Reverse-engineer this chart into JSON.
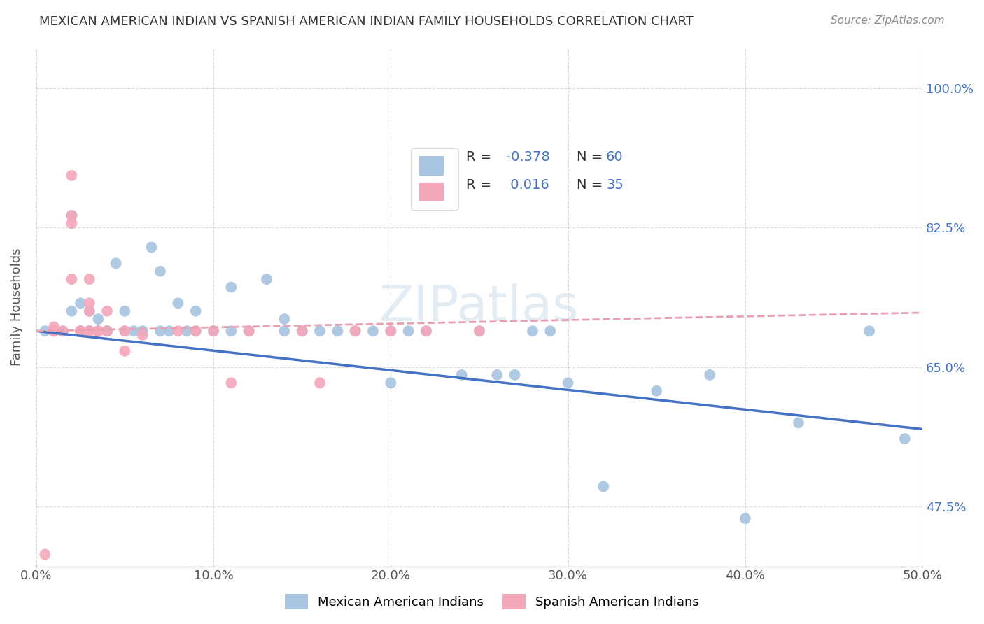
{
  "title": "MEXICAN AMERICAN INDIAN VS SPANISH AMERICAN INDIAN FAMILY HOUSEHOLDS CORRELATION CHART",
  "source": "Source: ZipAtlas.com",
  "xlabel_ticks": [
    "0.0%",
    "10.0%",
    "20.0%",
    "30.0%",
    "40.0%",
    "50.0%"
  ],
  "ylabel_ticks": [
    "47.5%",
    "65.0%",
    "82.5%",
    "100.0%"
  ],
  "ylabel_label": "Family Households",
  "legend_labels": [
    "Mexican American Indians",
    "Spanish American Indians"
  ],
  "blue_color": "#a8c4e0",
  "pink_color": "#f4a7b9",
  "blue_line_color": "#4472c4",
  "pink_line_color": "#e8a0b0",
  "r_blue": "-0.378",
  "n_blue": "60",
  "r_pink": "0.016",
  "n_pink": "35",
  "watermark": "ZIPatlas",
  "background_color": "#ffffff",
  "xmin": 0.0,
  "xmax": 0.5,
  "ymin": 0.4,
  "ymax": 1.05,
  "ytick_vals": [
    0.475,
    0.65,
    0.825,
    1.0
  ],
  "xtick_vals": [
    0.0,
    0.1,
    0.2,
    0.3,
    0.4,
    0.5
  ],
  "blue_scatter_x": [
    0.005,
    0.01,
    0.015,
    0.02,
    0.02,
    0.025,
    0.025,
    0.03,
    0.03,
    0.03,
    0.03,
    0.035,
    0.035,
    0.04,
    0.04,
    0.04,
    0.045,
    0.05,
    0.05,
    0.055,
    0.06,
    0.065,
    0.07,
    0.07,
    0.075,
    0.08,
    0.085,
    0.09,
    0.09,
    0.1,
    0.1,
    0.11,
    0.11,
    0.12,
    0.13,
    0.14,
    0.14,
    0.15,
    0.16,
    0.17,
    0.18,
    0.19,
    0.2,
    0.2,
    0.21,
    0.22,
    0.24,
    0.25,
    0.26,
    0.27,
    0.28,
    0.29,
    0.3,
    0.32,
    0.35,
    0.38,
    0.4,
    0.43,
    0.47,
    0.49
  ],
  "blue_scatter_y": [
    0.695,
    0.695,
    0.695,
    0.84,
    0.72,
    0.73,
    0.695,
    0.695,
    0.72,
    0.695,
    0.695,
    0.71,
    0.695,
    0.695,
    0.695,
    0.695,
    0.78,
    0.72,
    0.695,
    0.695,
    0.695,
    0.8,
    0.77,
    0.695,
    0.695,
    0.73,
    0.695,
    0.72,
    0.695,
    0.695,
    0.695,
    0.75,
    0.695,
    0.695,
    0.76,
    0.71,
    0.695,
    0.695,
    0.695,
    0.695,
    0.695,
    0.695,
    0.695,
    0.63,
    0.695,
    0.695,
    0.64,
    0.695,
    0.64,
    0.64,
    0.695,
    0.695,
    0.63,
    0.5,
    0.62,
    0.64,
    0.46,
    0.58,
    0.695,
    0.56
  ],
  "pink_scatter_x": [
    0.005,
    0.01,
    0.01,
    0.01,
    0.015,
    0.02,
    0.02,
    0.02,
    0.02,
    0.025,
    0.025,
    0.025,
    0.03,
    0.03,
    0.03,
    0.03,
    0.03,
    0.035,
    0.035,
    0.04,
    0.04,
    0.05,
    0.05,
    0.06,
    0.08,
    0.09,
    0.1,
    0.11,
    0.12,
    0.15,
    0.16,
    0.18,
    0.2,
    0.22,
    0.25
  ],
  "pink_scatter_y": [
    0.415,
    0.7,
    0.695,
    0.695,
    0.695,
    0.89,
    0.84,
    0.83,
    0.76,
    0.695,
    0.695,
    0.695,
    0.76,
    0.73,
    0.72,
    0.695,
    0.695,
    0.695,
    0.695,
    0.72,
    0.695,
    0.695,
    0.67,
    0.69,
    0.695,
    0.695,
    0.695,
    0.63,
    0.695,
    0.695,
    0.63,
    0.695,
    0.695,
    0.695,
    0.695
  ]
}
